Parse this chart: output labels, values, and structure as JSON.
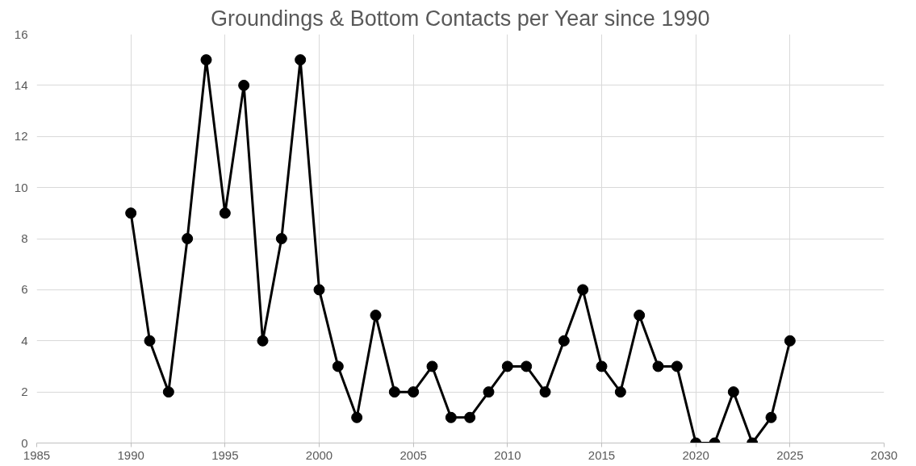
{
  "chart_data": {
    "type": "line",
    "title": "Groundings & Bottom Contacts per Year since 1990",
    "x": [
      1990,
      1991,
      1992,
      1993,
      1994,
      1995,
      1996,
      1997,
      1998,
      1999,
      2000,
      2001,
      2002,
      2003,
      2004,
      2005,
      2006,
      2007,
      2008,
      2009,
      2010,
      2011,
      2012,
      2013,
      2014,
      2015,
      2016,
      2017,
      2018,
      2019,
      2020,
      2021,
      2022,
      2023,
      2024,
      2025
    ],
    "series": [
      {
        "color": "#000000",
        "values": [
          9,
          4,
          2,
          8,
          15,
          9,
          14,
          4,
          8,
          15,
          6,
          3,
          1,
          5,
          2,
          2,
          3,
          1,
          1,
          2,
          3,
          3,
          2,
          4,
          6,
          3,
          2,
          5,
          3,
          3,
          0,
          0,
          2,
          0,
          1,
          4
        ]
      }
    ],
    "xlim": [
      1985,
      2030
    ],
    "xticks": [
      1985,
      1990,
      1995,
      2000,
      2005,
      2010,
      2015,
      2020,
      2025,
      2030
    ],
    "ylim": [
      0,
      16
    ],
    "yticks": [
      0,
      2,
      4,
      6,
      8,
      10,
      12,
      14,
      16
    ],
    "grid": true,
    "marker": "circle",
    "line_style": "solid"
  }
}
